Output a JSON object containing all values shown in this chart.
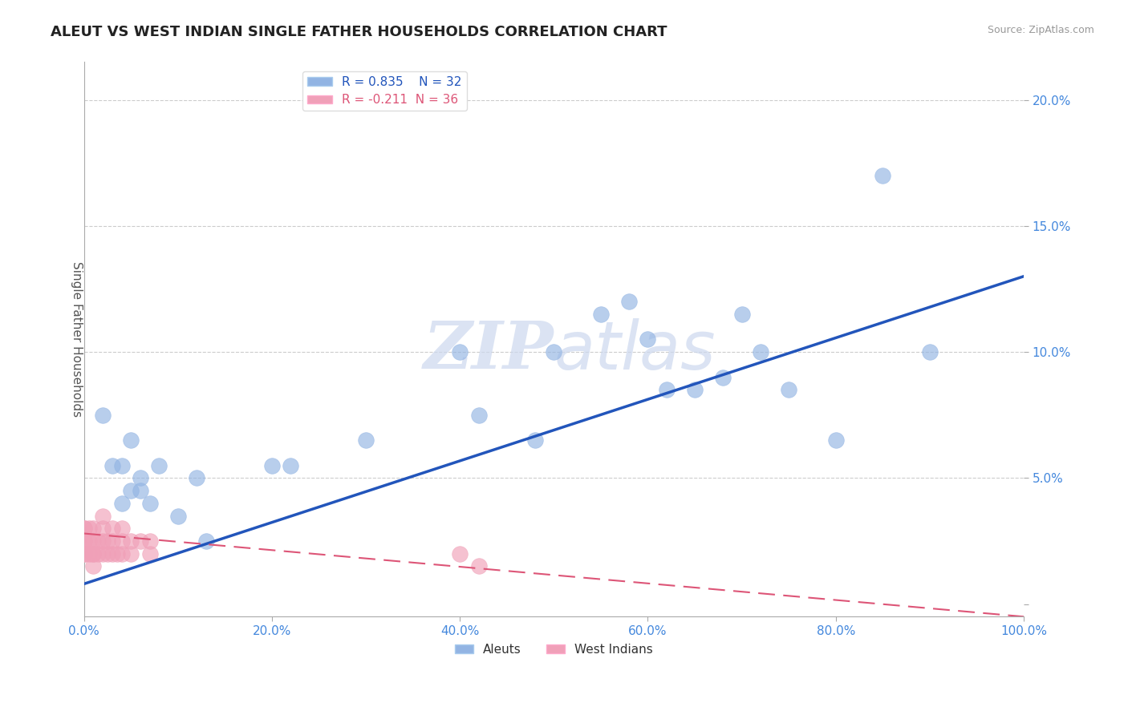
{
  "title": "ALEUT VS WEST INDIAN SINGLE FATHER HOUSEHOLDS CORRELATION CHART",
  "source": "Source: ZipAtlas.com",
  "ylabel": "Single Father Households",
  "xlim": [
    0.0,
    1.0
  ],
  "ylim": [
    -0.005,
    0.215
  ],
  "xticks": [
    0.0,
    0.2,
    0.4,
    0.6,
    0.8,
    1.0
  ],
  "yticks": [
    0.0,
    0.05,
    0.1,
    0.15,
    0.2
  ],
  "xticklabels": [
    "0.0%",
    "20.0%",
    "40.0%",
    "60.0%",
    "80.0%",
    "100.0%"
  ],
  "yticklabels": [
    "",
    "5.0%",
    "10.0%",
    "15.0%",
    "20.0%"
  ],
  "aleuts_R": 0.835,
  "aleuts_N": 32,
  "west_indians_R": -0.211,
  "west_indians_N": 36,
  "aleuts_color": "#92b4e3",
  "aleuts_line_color": "#2255bb",
  "west_indians_color": "#f0a0b8",
  "west_indians_line_color": "#dd5577",
  "background_color": "#ffffff",
  "grid_color": "#cccccc",
  "title_color": "#222222",
  "source_color": "#999999",
  "axis_label_color": "#555555",
  "tick_color": "#4488dd",
  "legend_box_color": "#ffffff",
  "watermark_color": "#ccd8ee",
  "aleuts_x": [
    0.02,
    0.03,
    0.04,
    0.04,
    0.05,
    0.05,
    0.06,
    0.06,
    0.07,
    0.08,
    0.1,
    0.12,
    0.13,
    0.2,
    0.22,
    0.3,
    0.4,
    0.42,
    0.48,
    0.5,
    0.55,
    0.58,
    0.6,
    0.62,
    0.65,
    0.68,
    0.7,
    0.72,
    0.75,
    0.8,
    0.85,
    0.9
  ],
  "aleuts_y": [
    0.075,
    0.055,
    0.04,
    0.055,
    0.045,
    0.065,
    0.05,
    0.045,
    0.04,
    0.055,
    0.035,
    0.05,
    0.025,
    0.055,
    0.055,
    0.065,
    0.1,
    0.075,
    0.065,
    0.1,
    0.115,
    0.12,
    0.105,
    0.085,
    0.085,
    0.09,
    0.115,
    0.1,
    0.085,
    0.065,
    0.17,
    0.1
  ],
  "west_indians_x": [
    0.0,
    0.0,
    0.0,
    0.0,
    0.0,
    0.0,
    0.005,
    0.005,
    0.005,
    0.01,
    0.01,
    0.01,
    0.01,
    0.01,
    0.015,
    0.015,
    0.02,
    0.02,
    0.02,
    0.02,
    0.025,
    0.025,
    0.03,
    0.03,
    0.03,
    0.035,
    0.04,
    0.04,
    0.04,
    0.05,
    0.05,
    0.06,
    0.07,
    0.07,
    0.4,
    0.42
  ],
  "west_indians_y": [
    0.02,
    0.025,
    0.03,
    0.02,
    0.025,
    0.03,
    0.02,
    0.025,
    0.03,
    0.015,
    0.02,
    0.025,
    0.03,
    0.02,
    0.02,
    0.025,
    0.02,
    0.025,
    0.03,
    0.035,
    0.02,
    0.025,
    0.025,
    0.02,
    0.03,
    0.02,
    0.025,
    0.03,
    0.02,
    0.02,
    0.025,
    0.025,
    0.02,
    0.025,
    0.02,
    0.015
  ]
}
